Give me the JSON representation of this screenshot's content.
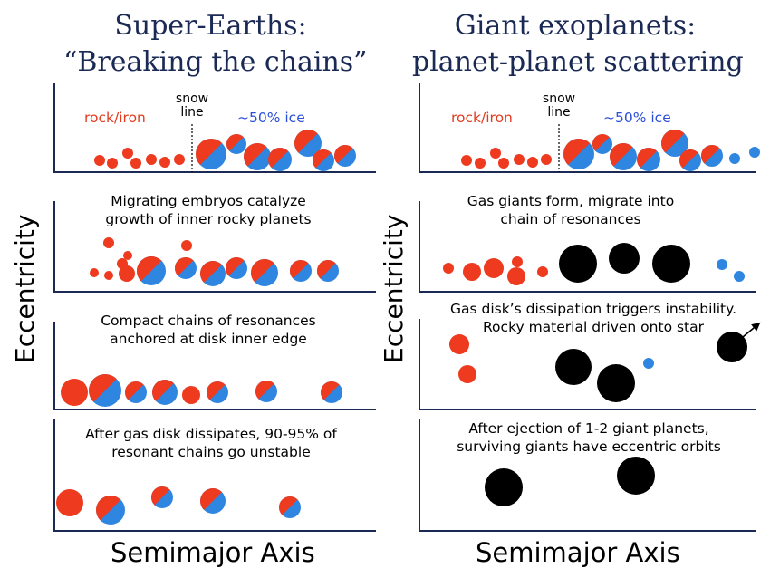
{
  "titles": {
    "left_line1": "Super-Earths:",
    "left_line2": "“Breaking the chains”",
    "right_line1": "Giant exoplanets:",
    "right_line2": "planet-planet scattering"
  },
  "axes": {
    "y_label": "Eccentricity",
    "x_label": "Semimajor Axis"
  },
  "legend": {
    "rock": "rock/iron",
    "snow_line1": "snow",
    "snow_line2": "line",
    "ice": "~50% ice"
  },
  "captions": {
    "left": [
      {
        "line1": "Migrating embryos catalyze",
        "line2": "growth of inner rocky planets"
      },
      {
        "line1": "Compact chains of resonances",
        "line2": "anchored at disk inner edge"
      },
      {
        "line1": "After gas disk dissipates, 90-95% of",
        "line2": "resonant chains go unstable"
      }
    ],
    "right": [
      {
        "line1": "Gas giants form, migrate into",
        "line2": "chain of resonances"
      },
      {
        "line1": "Gas disk’s dissipation triggers instability.",
        "line2": "Rocky material driven onto star"
      },
      {
        "line1": "After ejection of 1-2 giant planets,",
        "line2": "surviving giants have eccentric orbits"
      }
    ]
  },
  "colors": {
    "rock": "#ee3a1e",
    "ice": "#2f86e0",
    "giant": "#000000",
    "title": "#1a2a55"
  }
}
